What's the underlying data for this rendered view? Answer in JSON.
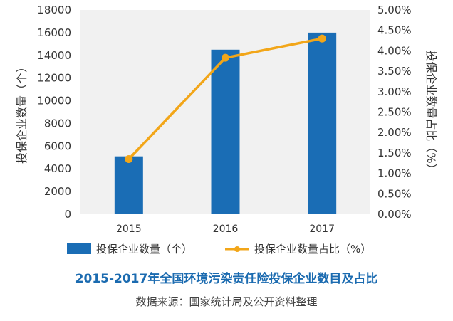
{
  "chart_data": {
    "type": "bar",
    "categories": [
      "2015",
      "2016",
      "2017"
    ],
    "series": [
      {
        "name": "投保企业数量（个）",
        "type": "bar",
        "axis": "left",
        "values": [
          5100,
          14500,
          16000
        ],
        "color": "#1a6db5"
      },
      {
        "name": "投保企业数量占比（%）",
        "type": "line",
        "axis": "right",
        "values": [
          1.35,
          3.83,
          4.3
        ],
        "color": "#f2a619"
      }
    ],
    "ylabel": "投保企业数量（个）",
    "ylabel_right": "投保企业数量占比（%）",
    "ylim": [
      0,
      18000
    ],
    "ylim_right": [
      0,
      5.0
    ],
    "y_ticks": [
      "0",
      "2000",
      "4000",
      "6000",
      "8000",
      "10000",
      "12000",
      "14000",
      "16000",
      "18000"
    ],
    "y_ticks_right": [
      "0.00%",
      "0.50%",
      "1.00%",
      "1.50%",
      "2.00%",
      "2.50%",
      "3.00%",
      "3.50%",
      "4.00%",
      "4.50%",
      "5.00%"
    ],
    "title": "2015-2017年全国环境污染责任险投保企业数目及占比",
    "source": "数据来源：国家统计局及公开资料整理",
    "grid": false,
    "legend_position": "bottom"
  }
}
